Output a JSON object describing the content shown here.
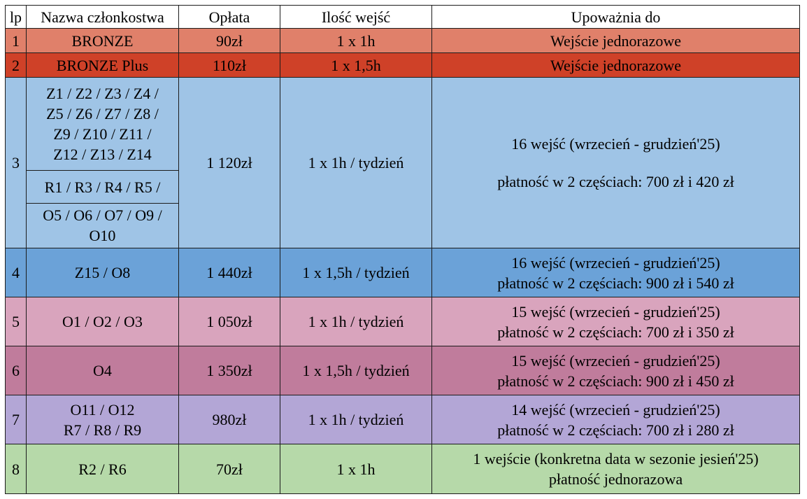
{
  "headers": {
    "lp": "lp",
    "name": "Nazwa członkostwa",
    "fee": "Opłata",
    "entries": "Ilość wejść",
    "authorizes": "Upoważnia do"
  },
  "colors": {
    "row1": "#e0806a",
    "row2": "#cf4128",
    "row3": "#9fc4e6",
    "row4": "#6ba2d8",
    "row5": "#d9a4bd",
    "row6": "#c07c9c",
    "row7": "#b3a6d6",
    "row8": "#b6d9a9"
  },
  "rows": [
    {
      "lp": "1",
      "name": [
        "BRONZE"
      ],
      "fee": "90zł",
      "entries": "1 x 1h",
      "authorizes": [
        "Wejście jednorazowe"
      ]
    },
    {
      "lp": "2",
      "name": [
        "BRONZE Plus"
      ],
      "fee": "110zł",
      "entries": "1 x 1,5h",
      "authorizes": [
        "Wejście jednorazowe"
      ]
    },
    {
      "lp": "3",
      "name_groups": [
        [
          "Z1 / Z2 / Z3 / Z4 /",
          "Z5 / Z6 /  Z7 / Z8 /",
          "Z9 / Z10 / Z11 /",
          "Z12 / Z13 / Z14"
        ],
        [
          "R1 / R3 / R4 / R5 /"
        ],
        [
          "O5 / O6 / O7 / O9 /",
          "O10"
        ]
      ],
      "fee": "1 120zł",
      "entries": "1 x 1h / tydzień",
      "authorizes": [
        "16 wejść (wrzecień - grudzień'25)",
        "płatność w 2 częściach: 700 zł i 420 zł"
      ]
    },
    {
      "lp": "4",
      "name": [
        "Z15 / O8"
      ],
      "fee": "1 440zł",
      "entries": "1 x 1,5h / tydzień",
      "authorizes": [
        "16 wejść (wrzecień - grudzień'25)",
        "płatność w 2 częściach: 900 zł i 540 zł"
      ]
    },
    {
      "lp": "5",
      "name": [
        "O1 / O2 / O3"
      ],
      "fee": "1 050zł",
      "entries": "1 x 1h / tydzień",
      "authorizes": [
        "15 wejść (wrzecień - grudzień'25)",
        "płatność w 2 częściach: 700 zł i 350 zł"
      ]
    },
    {
      "lp": "6",
      "name": [
        "O4"
      ],
      "fee": "1 350zł",
      "entries": "1 x 1,5h / tydzień",
      "authorizes": [
        "15 wejść (wrzecień - grudzień'25)",
        "płatność w 2 częściach: 900 zł i 450 zł"
      ]
    },
    {
      "lp": "7",
      "name": [
        "O11 / O12",
        "R7 / R8 / R9"
      ],
      "fee": "980zł",
      "entries": "1 x 1h / tydzień",
      "authorizes": [
        "14 wejść (wrzecień - grudzień'25)",
        "płatność w 2 częściach: 700 zł i 280 zł"
      ]
    },
    {
      "lp": "8",
      "name": [
        "R2 / R6"
      ],
      "fee": "70zł",
      "entries": "1 x 1h",
      "authorizes": [
        "1 wejście (konkretna data w sezonie jesień'25)",
        "płatność jednorazowa"
      ]
    }
  ]
}
